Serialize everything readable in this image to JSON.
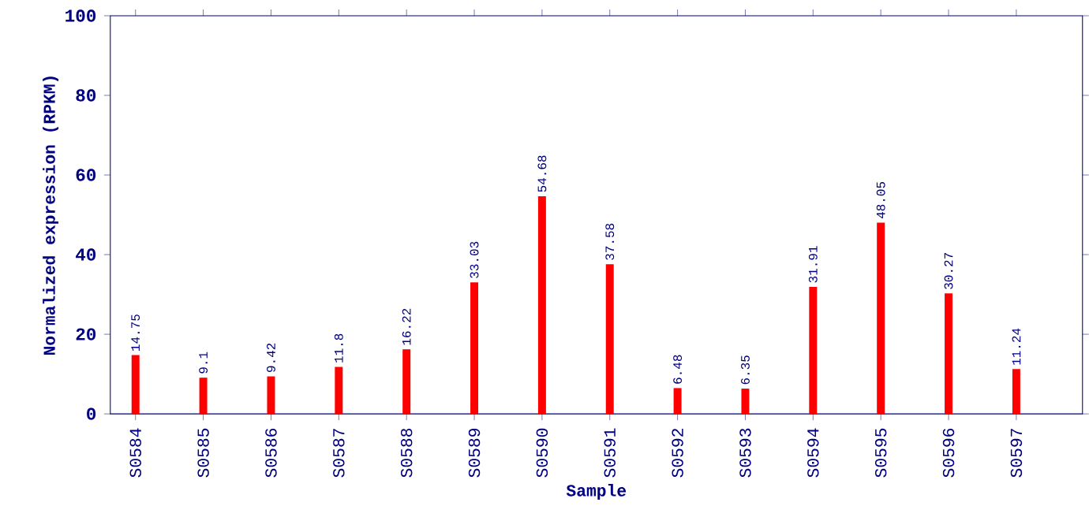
{
  "chart_data": {
    "type": "bar",
    "xlabel": "Sample",
    "ylabel": "Normalized expression (RPKM)",
    "categories": [
      "S0584",
      "S0585",
      "S0586",
      "S0587",
      "S0588",
      "S0589",
      "S0590",
      "S0591",
      "S0592",
      "S0593",
      "S0594",
      "S0595",
      "S0596",
      "S0597"
    ],
    "values": [
      14.75,
      9.1,
      9.42,
      11.8,
      16.22,
      33.03,
      54.68,
      37.58,
      6.48,
      6.35,
      31.91,
      48.05,
      30.27,
      11.24
    ],
    "color": "#ff0000",
    "ylim": [
      0,
      100
    ],
    "yticks": [
      0,
      20,
      40,
      60,
      80,
      100
    ],
    "data_labels": true
  }
}
